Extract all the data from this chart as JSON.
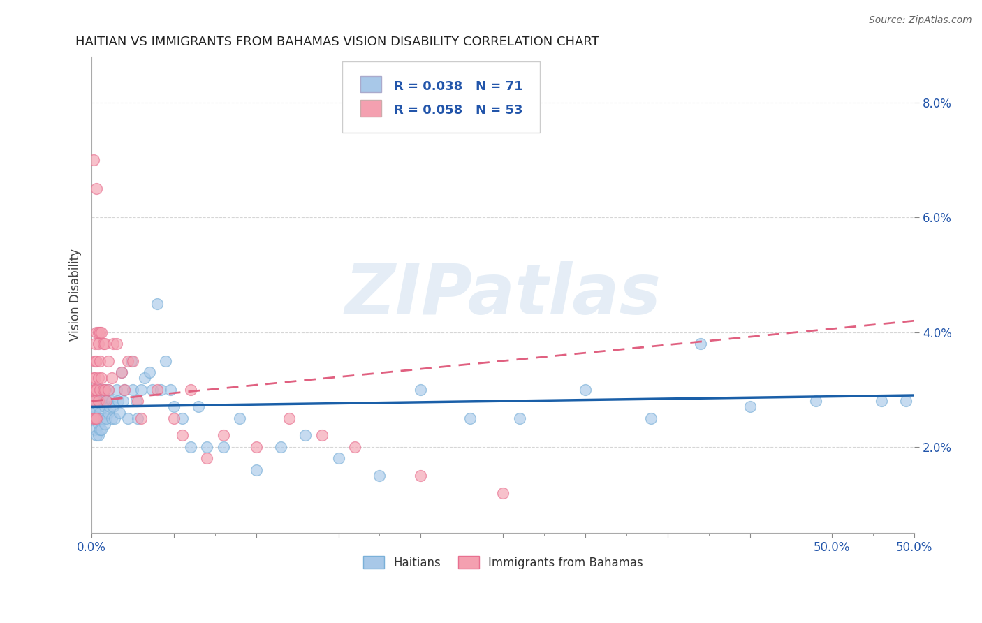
{
  "title": "HAITIAN VS IMMIGRANTS FROM BAHAMAS VISION DISABILITY CORRELATION CHART",
  "source": "Source: ZipAtlas.com",
  "ylabel": "Vision Disability",
  "xlim": [
    0.0,
    0.5
  ],
  "ylim": [
    0.005,
    0.088
  ],
  "xticks_major": [
    0.0,
    0.05,
    0.1,
    0.15,
    0.2,
    0.25,
    0.3,
    0.35,
    0.4,
    0.45,
    0.5
  ],
  "xticks_minor": [
    0.025,
    0.075,
    0.125,
    0.175,
    0.225,
    0.275,
    0.325,
    0.375,
    0.425,
    0.475
  ],
  "xticklabels_show": {
    "0.0": "0.0%",
    "0.5": "50.0%"
  },
  "yticks": [
    0.02,
    0.04,
    0.06,
    0.08
  ],
  "yticklabels": [
    "2.0%",
    "4.0%",
    "6.0%",
    "8.0%"
  ],
  "blue_color": "#a8c8e8",
  "pink_color": "#f4a0b0",
  "blue_edge": "#7ab0d8",
  "pink_edge": "#e87090",
  "trend_blue": "#1a5fa8",
  "trend_pink": "#e06080",
  "watermark": "ZIPatlas",
  "blue_r": 0.038,
  "blue_n": 71,
  "pink_r": 0.058,
  "pink_n": 53,
  "blue_points_x": [
    0.001,
    0.001,
    0.002,
    0.002,
    0.003,
    0.003,
    0.003,
    0.004,
    0.004,
    0.004,
    0.005,
    0.005,
    0.005,
    0.006,
    0.006,
    0.006,
    0.007,
    0.007,
    0.008,
    0.008,
    0.008,
    0.009,
    0.009,
    0.01,
    0.01,
    0.011,
    0.012,
    0.012,
    0.013,
    0.014,
    0.015,
    0.016,
    0.017,
    0.018,
    0.019,
    0.02,
    0.022,
    0.024,
    0.025,
    0.027,
    0.028,
    0.03,
    0.032,
    0.035,
    0.037,
    0.04,
    0.042,
    0.045,
    0.048,
    0.05,
    0.055,
    0.06,
    0.065,
    0.07,
    0.08,
    0.09,
    0.1,
    0.115,
    0.13,
    0.15,
    0.175,
    0.2,
    0.23,
    0.26,
    0.3,
    0.34,
    0.37,
    0.4,
    0.44,
    0.48,
    0.495
  ],
  "blue_points_y": [
    0.027,
    0.025,
    0.026,
    0.023,
    0.028,
    0.025,
    0.022,
    0.027,
    0.024,
    0.022,
    0.03,
    0.026,
    0.023,
    0.028,
    0.025,
    0.023,
    0.029,
    0.025,
    0.03,
    0.027,
    0.024,
    0.028,
    0.025,
    0.03,
    0.026,
    0.027,
    0.025,
    0.028,
    0.027,
    0.025,
    0.03,
    0.028,
    0.026,
    0.033,
    0.028,
    0.03,
    0.025,
    0.035,
    0.03,
    0.028,
    0.025,
    0.03,
    0.032,
    0.033,
    0.03,
    0.045,
    0.03,
    0.035,
    0.03,
    0.027,
    0.025,
    0.02,
    0.027,
    0.02,
    0.02,
    0.025,
    0.016,
    0.02,
    0.022,
    0.018,
    0.015,
    0.03,
    0.025,
    0.025,
    0.03,
    0.025,
    0.038,
    0.027,
    0.028,
    0.028,
    0.028
  ],
  "pink_points_x": [
    0.001,
    0.001,
    0.001,
    0.001,
    0.001,
    0.002,
    0.002,
    0.002,
    0.002,
    0.002,
    0.002,
    0.003,
    0.003,
    0.003,
    0.003,
    0.003,
    0.004,
    0.004,
    0.004,
    0.004,
    0.005,
    0.005,
    0.005,
    0.006,
    0.006,
    0.007,
    0.007,
    0.008,
    0.008,
    0.009,
    0.01,
    0.01,
    0.012,
    0.013,
    0.015,
    0.018,
    0.02,
    0.022,
    0.025,
    0.028,
    0.03,
    0.04,
    0.05,
    0.055,
    0.06,
    0.07,
    0.08,
    0.1,
    0.12,
    0.14,
    0.16,
    0.2,
    0.25
  ],
  "pink_points_y": [
    0.07,
    0.032,
    0.028,
    0.03,
    0.025,
    0.032,
    0.03,
    0.028,
    0.038,
    0.035,
    0.025,
    0.065,
    0.04,
    0.035,
    0.03,
    0.025,
    0.04,
    0.038,
    0.032,
    0.028,
    0.04,
    0.035,
    0.03,
    0.04,
    0.032,
    0.038,
    0.03,
    0.038,
    0.03,
    0.028,
    0.035,
    0.03,
    0.032,
    0.038,
    0.038,
    0.033,
    0.03,
    0.035,
    0.035,
    0.028,
    0.025,
    0.03,
    0.025,
    0.022,
    0.03,
    0.018,
    0.022,
    0.02,
    0.025,
    0.022,
    0.02,
    0.015,
    0.012
  ],
  "blue_trend_x0": 0.0,
  "blue_trend_x1": 0.5,
  "blue_trend_y0": 0.027,
  "blue_trend_y1": 0.029,
  "pink_trend_x0": 0.0,
  "pink_trend_x1": 0.5,
  "pink_trend_y0": 0.028,
  "pink_trend_y1": 0.042,
  "background_color": "#ffffff",
  "grid_color": "#cccccc",
  "tick_color": "#888888",
  "label_color": "#2255aa"
}
